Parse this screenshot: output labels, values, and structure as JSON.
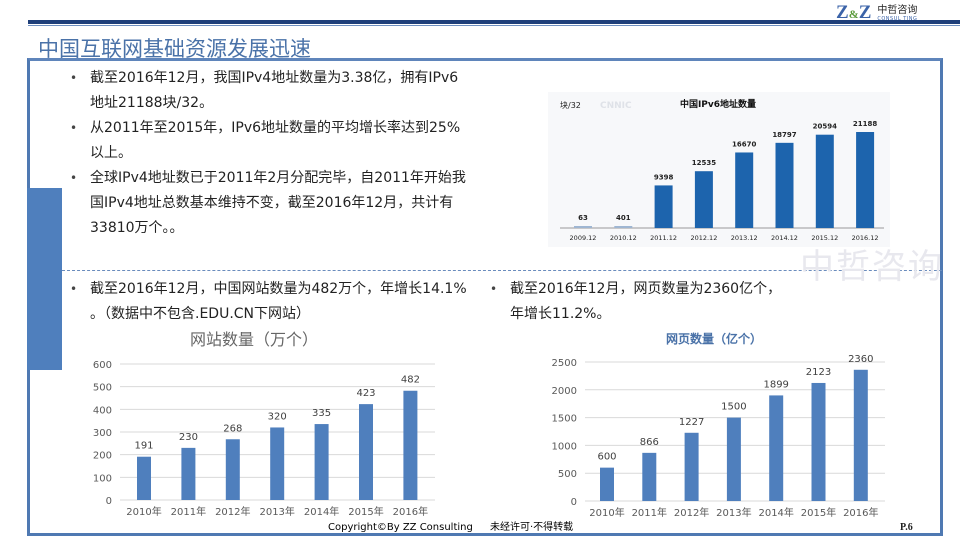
{
  "header": {
    "logo_mark": "Z&Z",
    "logo_cn": "中哲咨询",
    "logo_en": "CONSUL TING",
    "title": "中国互联网基础资源发展迅速"
  },
  "watermark": "中哲咨询",
  "bullets_top": [
    "截至2016年12月，我国IPv4地址数量为3.38亿，拥有IPv6地址21188块/32。",
    "从2011年至2015年，IPv6地址数量的平均增长率达到25%以上。",
    "全球IPv4地址数已于2011年2月分配完毕，自2011年开始我国IPv4地址总数基本维持不变，截至2016年12月，共计有33810万个。。"
  ],
  "bullet_left": "截至2016年12月，中国网站数量为482万个，年增长14.1% 。（数据中不包含.EDU.CN下网站）",
  "bullet_right": "截至2016年12月，网页数量为2360亿个，年增长11.2%。",
  "footer": {
    "copyright": "Copyright©By  ZZ Consulting",
    "notice": "未经许可·不得转载",
    "page": "P.6"
  },
  "colors": {
    "bar": "#4f7fbd",
    "ipv6_bar": "#1d64ad",
    "frame": "#4f79b2"
  },
  "chart_data": [
    {
      "type": "bar",
      "title": "中国IPv6地址数量",
      "ylabel": "块/32",
      "watermark": "CNNIC",
      "categories": [
        "2009.12",
        "2010.12",
        "2011.12",
        "2012.12",
        "2013.12",
        "2014.12",
        "2015.12",
        "2016.12"
      ],
      "values": [
        63,
        401,
        9398,
        12535,
        16670,
        18797,
        20594,
        21188
      ],
      "ylim": [
        0,
        22000
      ]
    },
    {
      "type": "bar",
      "title": "网站数量（万个）",
      "categories": [
        "2010年",
        "2011年",
        "2012年",
        "2013年",
        "2014年",
        "2015年",
        "2016年"
      ],
      "values": [
        191,
        230,
        268,
        320,
        335,
        423,
        482
      ],
      "yticks": [
        0,
        100,
        200,
        300,
        400,
        500,
        600
      ],
      "ylim": [
        0,
        600
      ],
      "grid": true
    },
    {
      "type": "bar",
      "title": "网页数量（亿个）",
      "categories": [
        "2010年",
        "2011年",
        "2012年",
        "2013年",
        "2014年",
        "2015年",
        "2016年"
      ],
      "values": [
        600,
        866,
        1227,
        1500,
        1899,
        2123,
        2360
      ],
      "yticks": [
        0,
        500,
        1000,
        1500,
        2000,
        2500
      ],
      "ylim": [
        0,
        2500
      ],
      "grid": true
    }
  ]
}
